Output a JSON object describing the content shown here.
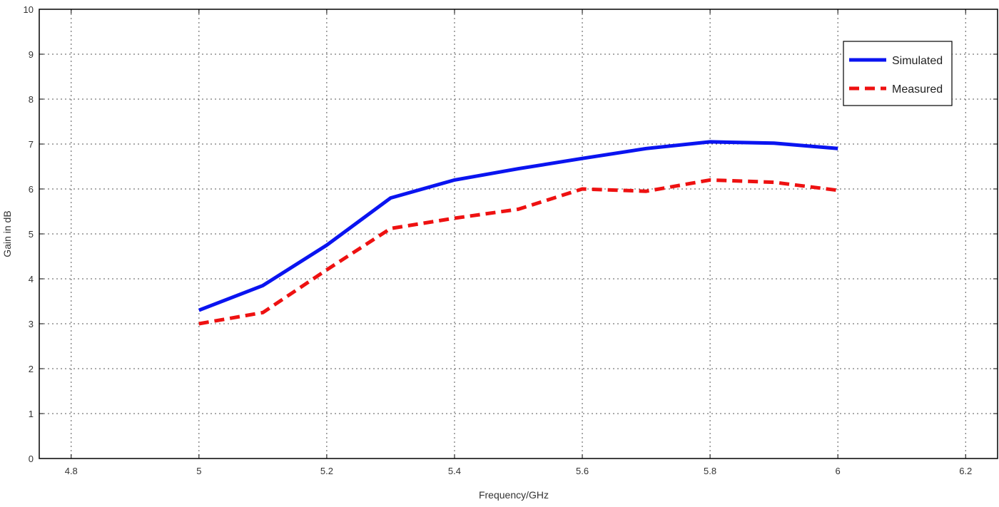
{
  "chart_data": {
    "type": "line",
    "xlabel": "Frequency/GHz",
    "ylabel": "Gain in dB",
    "xlim": [
      4.75,
      6.25
    ],
    "ylim": [
      0,
      10
    ],
    "xticks": [
      4.8,
      5,
      5.2,
      5.4,
      5.6,
      5.8,
      6,
      6.2
    ],
    "xtick_labels": [
      "4.8",
      "5",
      "5.2",
      "5.4",
      "5.6",
      "5.8",
      "6",
      "6.2"
    ],
    "yticks": [
      0,
      1,
      2,
      3,
      4,
      5,
      6,
      7,
      8,
      9,
      10
    ],
    "ytick_labels": [
      "0",
      "1",
      "2",
      "3",
      "4",
      "5",
      "6",
      "7",
      "8",
      "9",
      "10"
    ],
    "grid": true,
    "legend_position": "top-right",
    "series": [
      {
        "name": "Simulated",
        "color": "#0a14f0",
        "style": "solid",
        "x": [
          5.0,
          5.1,
          5.2,
          5.3,
          5.4,
          5.5,
          5.6,
          5.7,
          5.8,
          5.9,
          6.0
        ],
        "y": [
          3.3,
          3.85,
          4.75,
          5.8,
          6.2,
          6.45,
          6.68,
          6.9,
          7.05,
          7.02,
          6.9
        ]
      },
      {
        "name": "Measured",
        "color": "#ee1111",
        "style": "dashed",
        "x": [
          5.0,
          5.1,
          5.2,
          5.3,
          5.4,
          5.5,
          5.6,
          5.7,
          5.8,
          5.9,
          6.0
        ],
        "y": [
          3.0,
          3.25,
          4.2,
          5.12,
          5.35,
          5.55,
          6.0,
          5.95,
          6.2,
          6.15,
          5.97
        ]
      }
    ]
  }
}
